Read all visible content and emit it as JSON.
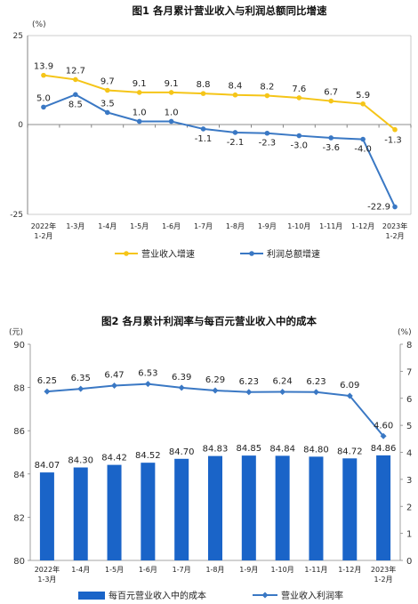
{
  "chart_data": [
    {
      "type": "line",
      "title": "图1  各月累计营业收入与利润总额同比增速",
      "unit_label": "(%)",
      "categories": [
        [
          "2022年",
          "1-2月"
        ],
        [
          "1-3月"
        ],
        [
          "1-4月"
        ],
        [
          "1-5月"
        ],
        [
          "1-6月"
        ],
        [
          "1-7月"
        ],
        [
          "1-8月"
        ],
        [
          "1-9月"
        ],
        [
          "1-10月"
        ],
        [
          "1-11月"
        ],
        [
          "1-12月"
        ],
        [
          "2023年",
          "1-2月"
        ]
      ],
      "yticks": [
        "25",
        "0",
        "-25"
      ],
      "ylim": [
        -25,
        25
      ],
      "grid": false,
      "legend_position": "bottom",
      "series": [
        {
          "name": "营业收入增速",
          "color": "#f5c518",
          "values": [
            13.9,
            12.7,
            9.7,
            9.1,
            9.1,
            8.8,
            8.4,
            8.2,
            7.6,
            6.7,
            5.9,
            -1.3
          ],
          "labels": [
            "13.9",
            "12.7",
            "9.7",
            "9.1",
            "9.1",
            "8.8",
            "8.4",
            "8.2",
            "7.6",
            "6.7",
            "5.9",
            "-1.3"
          ]
        },
        {
          "name": "利润总额增速",
          "color": "#3a78c4",
          "values": [
            5.0,
            8.5,
            3.5,
            1.0,
            1.0,
            -1.1,
            -2.1,
            -2.3,
            -3.0,
            -3.6,
            -4.0,
            -22.9
          ],
          "labels": [
            "5.0",
            "8.5",
            "3.5",
            "1.0",
            "1.0",
            "-1.1",
            "-2.1",
            "-2.3",
            "-3.0",
            "-3.6",
            "-4.0",
            "-22.9"
          ]
        }
      ]
    },
    {
      "type": "bar",
      "title": "图2  各月累计利润率与每百元营业收入中的成本",
      "left_unit_label": "(元)",
      "right_unit_label": "(%)",
      "categories": [
        [
          "2022年",
          "1-3月"
        ],
        [
          "1-4月"
        ],
        [
          "1-5月"
        ],
        [
          "1-6月"
        ],
        [
          "1-7月"
        ],
        [
          "1-8月"
        ],
        [
          "1-9月"
        ],
        [
          "1-10月"
        ],
        [
          "1-11月"
        ],
        [
          "1-12月"
        ],
        [
          "2023年",
          "1-2月"
        ]
      ],
      "ylim": [
        80,
        90
      ],
      "yticks": [
        "90",
        "88",
        "86",
        "84",
        "82",
        "80"
      ],
      "y2lim": [
        0,
        8
      ],
      "y2ticks": [
        "8",
        "7",
        "6",
        "5",
        "4",
        "3",
        "2",
        "1",
        "0"
      ],
      "grid": false,
      "legend_position": "bottom",
      "bar_series": {
        "name": "每百元营业收入中的成本",
        "color": "#1a64c8",
        "values": [
          84.07,
          84.3,
          84.42,
          84.52,
          84.7,
          84.83,
          84.85,
          84.84,
          84.8,
          84.72,
          84.86
        ],
        "labels": [
          "84.07",
          "84.30",
          "84.42",
          "84.52",
          "84.70",
          "84.83",
          "84.85",
          "84.84",
          "84.80",
          "84.72",
          "84.86"
        ]
      },
      "line_series": {
        "name": "营业收入利润率",
        "color": "#3a78c4",
        "values": [
          6.25,
          6.35,
          6.47,
          6.53,
          6.39,
          6.29,
          6.23,
          6.24,
          6.23,
          6.09,
          4.6
        ],
        "labels": [
          "6.25",
          "6.35",
          "6.47",
          "6.53",
          "6.39",
          "6.29",
          "6.23",
          "6.24",
          "6.23",
          "6.09",
          "4.60"
        ]
      }
    }
  ]
}
